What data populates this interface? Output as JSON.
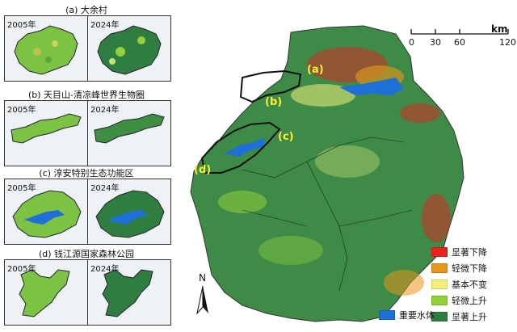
{
  "panels": [
    {
      "id": "a",
      "title": "(a) 大余村",
      "years": [
        "2005年",
        "2024年"
      ]
    },
    {
      "id": "b",
      "title": "(b) 天目山-清凉峰世界生物圈",
      "years": [
        "2005年",
        "2024年"
      ]
    },
    {
      "id": "c",
      "title": "(c) 淳安特别生态功能区",
      "years": [
        "2005年",
        "2024年"
      ]
    },
    {
      "id": "d",
      "title": "(d) 钱江源国家森林公园",
      "years": [
        "2005年",
        "2024年"
      ]
    }
  ],
  "map_labels": [
    "(a)",
    "(b)",
    "(c)",
    "(d)"
  ],
  "scale": {
    "ticks": [
      "0",
      "30",
      "60",
      "120"
    ],
    "unit": "km"
  },
  "north": "N",
  "legend": [
    {
      "label": "显著下降",
      "color": "#e8231f"
    },
    {
      "label": "轻微下降",
      "color": "#e7951b"
    },
    {
      "label": "基本不变",
      "color": "#f5f07c"
    },
    {
      "label": "轻微上升",
      "color": "#92d03c"
    },
    {
      "label": "显著上升",
      "color": "#2e7d3e"
    }
  ],
  "water": {
    "label": "重要水体",
    "color": "#1f6fd8"
  }
}
